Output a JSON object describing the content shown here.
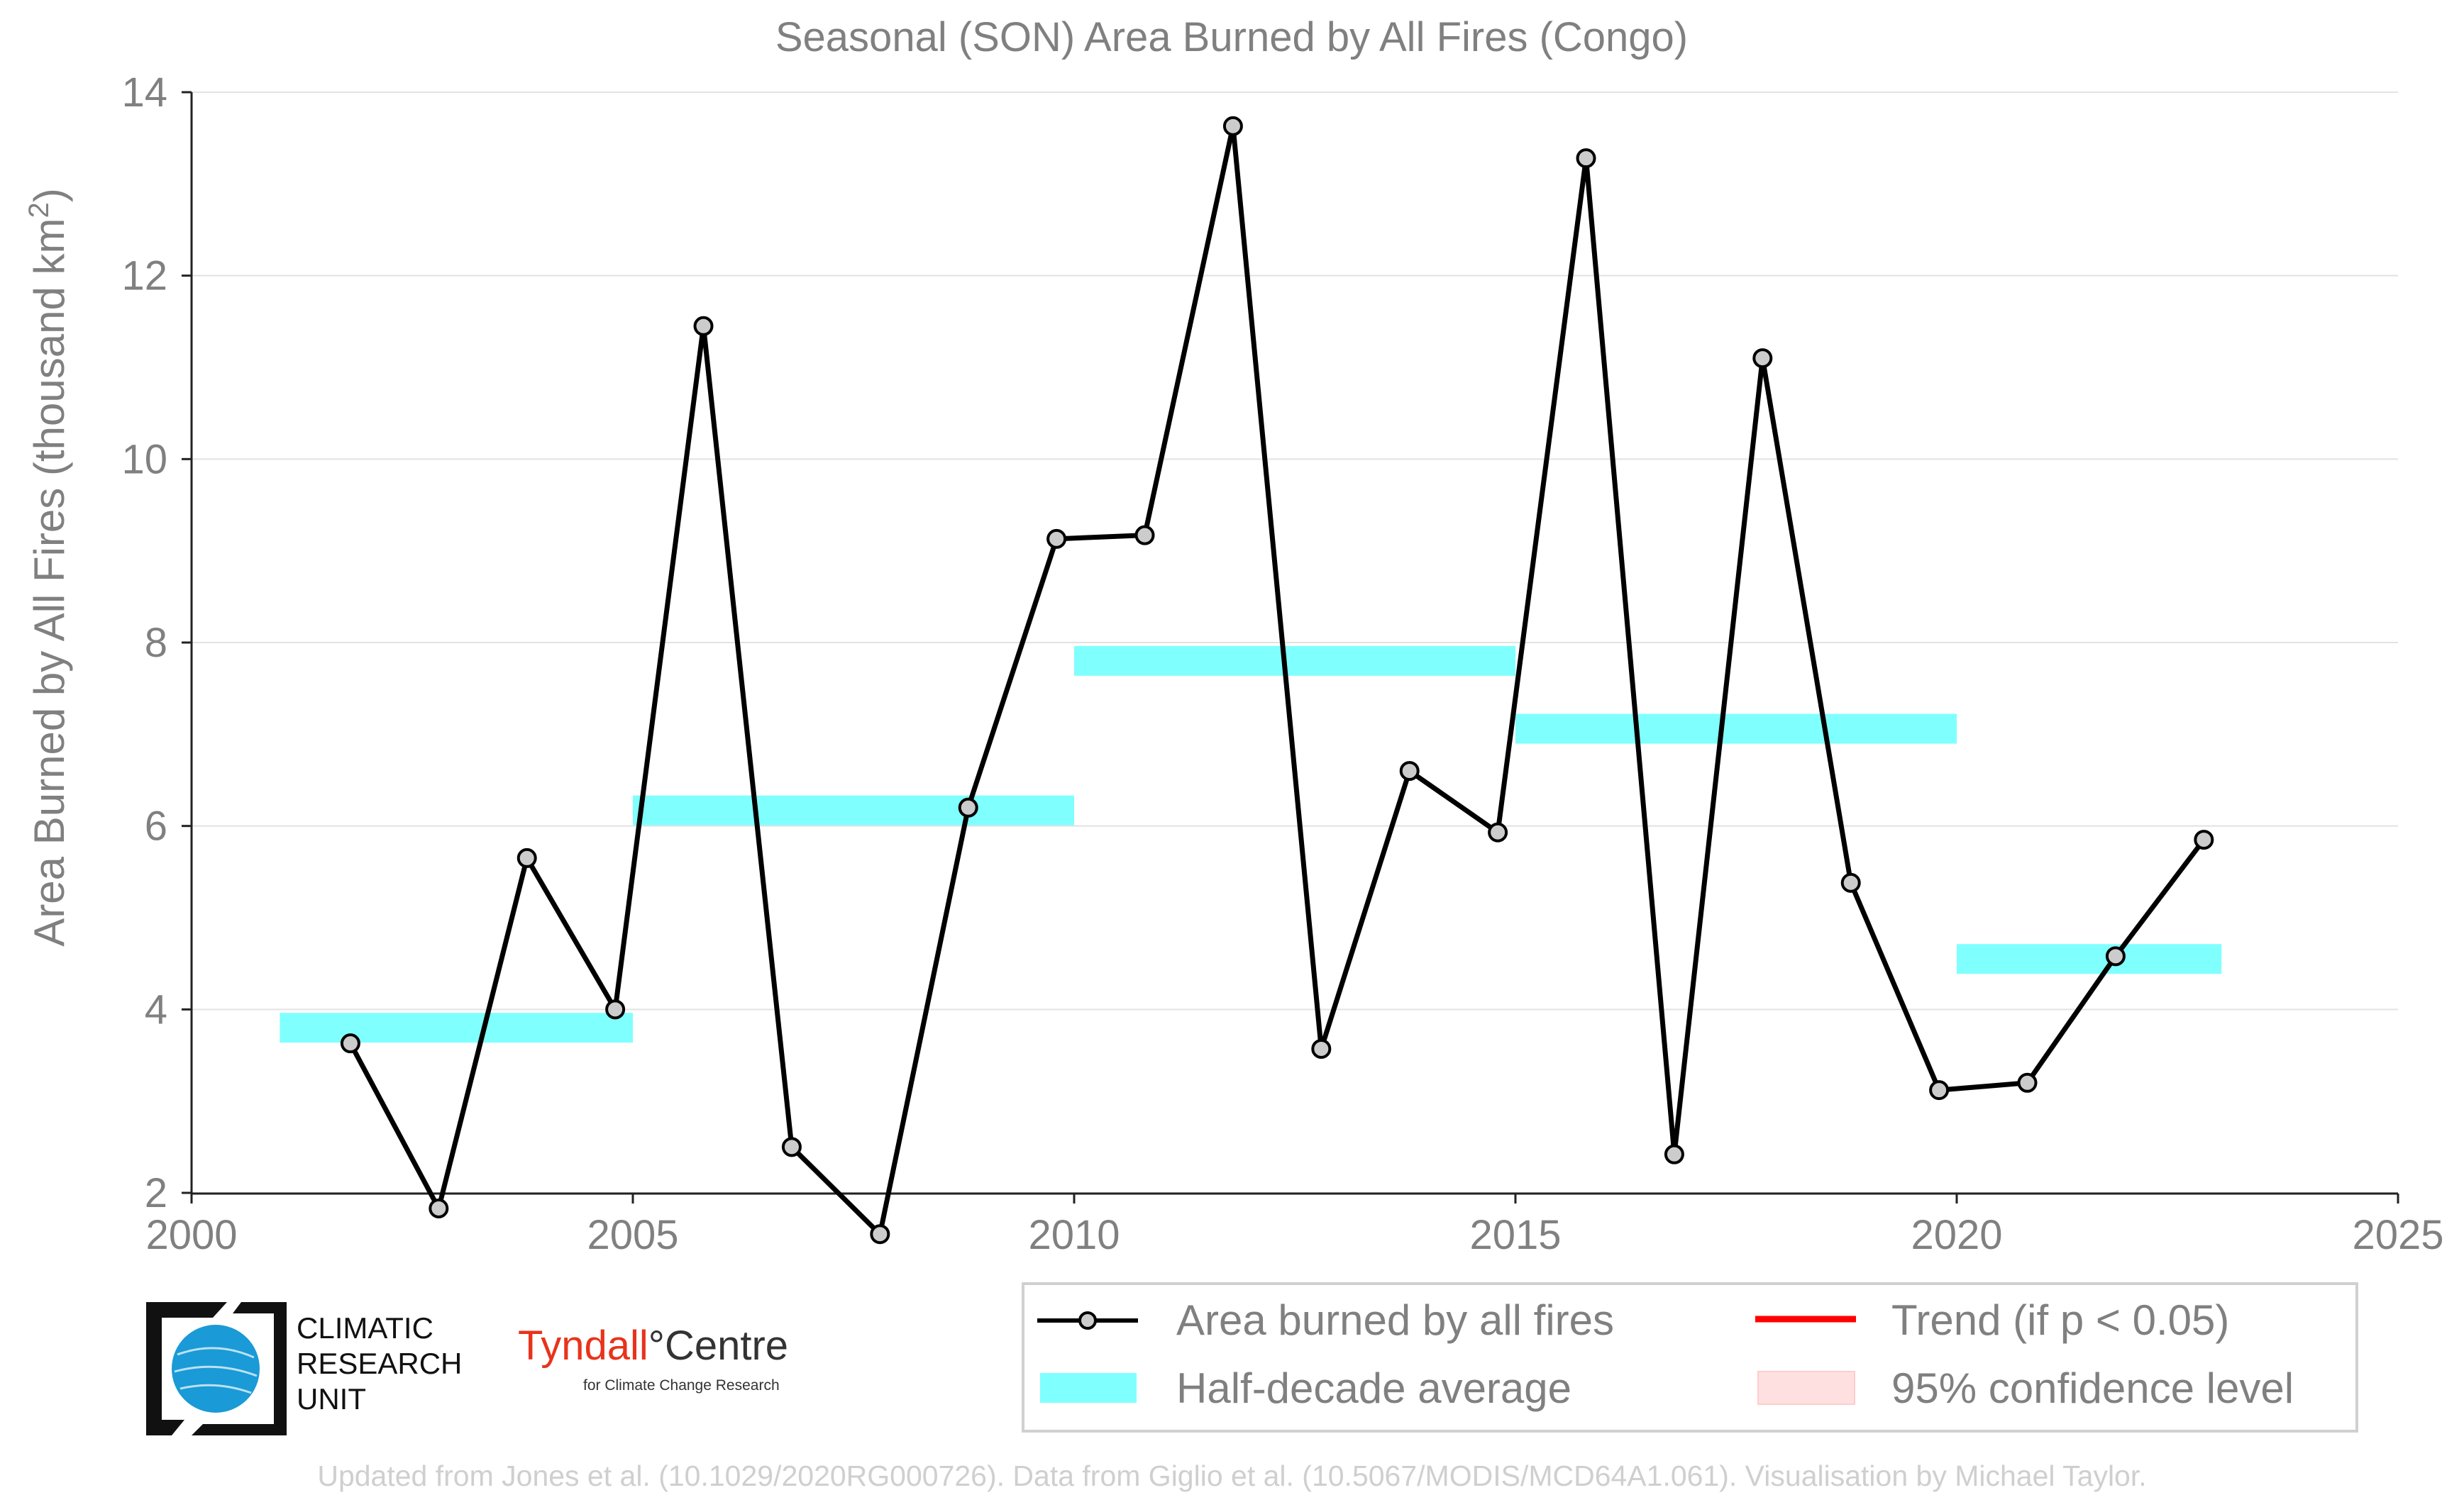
{
  "chart_data": {
    "type": "line",
    "title": "Seasonal (SON) Area Burned by All Fires (Congo)",
    "xlabel": "",
    "ylabel": "Area Burned by All Fires (thousand km",
    "ylabel_superscript": "2",
    "ylabel_suffix": ")",
    "xlim": [
      2000,
      2025
    ],
    "ylim": [
      0.6,
      14
    ],
    "x_ticks": [
      2000,
      2005,
      2010,
      2015,
      2020,
      2025
    ],
    "x_tick_labels": [
      "2000",
      "2005",
      "2010",
      "2015",
      "2020",
      "2025"
    ],
    "y_ticks": [
      2,
      4,
      6,
      8,
      10,
      12,
      14
    ],
    "y_tick_labels": [
      "2",
      "4",
      "6",
      "8",
      "10",
      "12",
      "14"
    ],
    "grid": "horizontal",
    "legend_position": "bottom-right",
    "series": [
      {
        "name": "Area burned by all fires",
        "type": "line",
        "color": "#000000",
        "marker_fill": "#cccccc",
        "x": [
          2001.8,
          2002.8,
          2003.8,
          2004.8,
          2005.8,
          2006.8,
          2007.8,
          2008.8,
          2009.8,
          2010.8,
          2011.8,
          2012.8,
          2013.8,
          2014.8,
          2015.8,
          2016.8,
          2017.8,
          2018.8,
          2019.8,
          2020.8,
          2021.8,
          2022.8
        ],
        "y": [
          3.63,
          1.83,
          5.65,
          4.0,
          11.45,
          2.5,
          1.55,
          6.2,
          9.13,
          9.17,
          13.63,
          3.57,
          6.6,
          5.93,
          13.28,
          2.42,
          11.1,
          5.38,
          3.12,
          3.2,
          4.58,
          5.85
        ]
      },
      {
        "name": "Half-decade average",
        "type": "step",
        "color": "#80ffff",
        "segments": [
          {
            "x0": 2001,
            "x1": 2005,
            "y": 3.8
          },
          {
            "x0": 2005,
            "x1": 2010,
            "y": 6.17
          },
          {
            "x0": 2010,
            "x1": 2015,
            "y": 7.8
          },
          {
            "x0": 2015,
            "x1": 2020,
            "y": 7.06
          },
          {
            "x0": 2020,
            "x1": 2023,
            "y": 4.55
          }
        ]
      }
    ],
    "legend": {
      "entries": [
        {
          "label": "Area burned by all fires",
          "symbol": "line-marker",
          "color": "#000000"
        },
        {
          "label": "Trend (if p < 0.05)",
          "symbol": "line",
          "color": "#ff0000"
        },
        {
          "label": "Half-decade average",
          "symbol": "band",
          "color": "#80ffff"
        },
        {
          "label": "95% confidence level",
          "symbol": "band",
          "color": "#ffe0e0"
        }
      ]
    }
  },
  "logos": {
    "cru_lines": [
      "CLIMATIC",
      "RESEARCH",
      "UNIT"
    ],
    "tyndall_name": "Tyndall°Centre",
    "tyndall_subtitle": "for Climate Change Research"
  },
  "footer": "Updated from Jones et al. (10.1029/2020RG000726). Data from Giglio et al. (10.5067/MODIS/MCD64A1.061). Visualisation by Michael Taylor."
}
